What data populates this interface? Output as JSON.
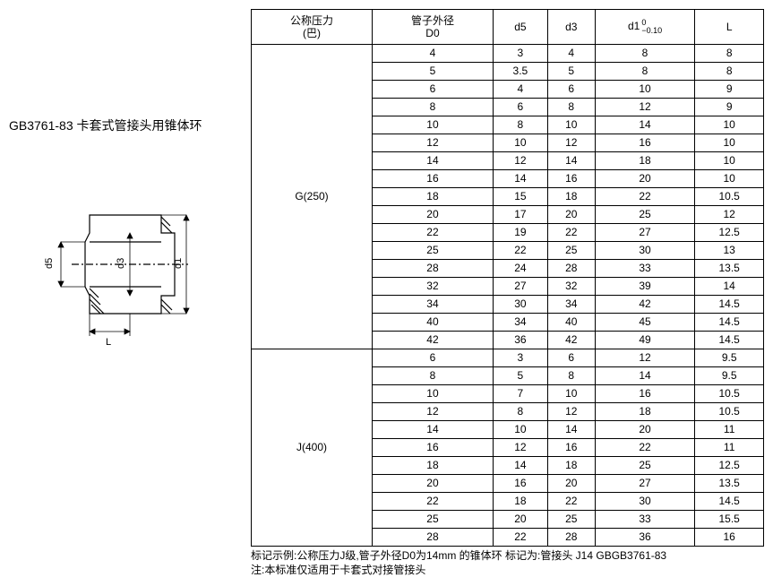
{
  "standard_label": "GB3761-83  卡套式管接头用锥体环",
  "diagram": {
    "labels": {
      "d5": "d5",
      "d3": "d3",
      "d1": "d1",
      "L": "L"
    }
  },
  "table": {
    "headers": {
      "col1": "公称压力\n(巴)",
      "col2": "管子外径\nD0",
      "col3": "d5",
      "col4": "d3",
      "col5_line1": "d1",
      "col5_line2_top": "0",
      "col5_line2_bot": "−0.10",
      "col6": "L"
    },
    "groups": [
      {
        "label": "G(250)",
        "rows": [
          [
            "4",
            "3",
            "4",
            "8",
            "8"
          ],
          [
            "5",
            "3.5",
            "5",
            "8",
            "8"
          ],
          [
            "6",
            "4",
            "6",
            "10",
            "9"
          ],
          [
            "8",
            "6",
            "8",
            "12",
            "9"
          ],
          [
            "10",
            "8",
            "10",
            "14",
            "10"
          ],
          [
            "12",
            "10",
            "12",
            "16",
            "10"
          ],
          [
            "14",
            "12",
            "14",
            "18",
            "10"
          ],
          [
            "16",
            "14",
            "16",
            "20",
            "10"
          ],
          [
            "18",
            "15",
            "18",
            "22",
            "10.5"
          ],
          [
            "20",
            "17",
            "20",
            "25",
            "12"
          ],
          [
            "22",
            "19",
            "22",
            "27",
            "12.5"
          ],
          [
            "25",
            "22",
            "25",
            "30",
            "13"
          ],
          [
            "28",
            "24",
            "28",
            "33",
            "13.5"
          ],
          [
            "32",
            "27",
            "32",
            "39",
            "14"
          ],
          [
            "34",
            "30",
            "34",
            "42",
            "14.5"
          ],
          [
            "40",
            "34",
            "40",
            "45",
            "14.5"
          ],
          [
            "42",
            "36",
            "42",
            "49",
            "14.5"
          ]
        ]
      },
      {
        "label": "J(400)",
        "rows": [
          [
            "6",
            "3",
            "6",
            "12",
            "9.5"
          ],
          [
            "8",
            "5",
            "8",
            "14",
            "9.5"
          ],
          [
            "10",
            "7",
            "10",
            "16",
            "10.5"
          ],
          [
            "12",
            "8",
            "12",
            "18",
            "10.5"
          ],
          [
            "14",
            "10",
            "14",
            "20",
            "11"
          ],
          [
            "16",
            "12",
            "16",
            "22",
            "11"
          ],
          [
            "18",
            "14",
            "18",
            "25",
            "12.5"
          ],
          [
            "20",
            "16",
            "20",
            "27",
            "13.5"
          ],
          [
            "22",
            "18",
            "22",
            "30",
            "14.5"
          ],
          [
            "25",
            "20",
            "25",
            "33",
            "15.5"
          ],
          [
            "28",
            "22",
            "28",
            "36",
            "16"
          ]
        ]
      }
    ]
  },
  "footnote_line1": "标记示例:公称压力J级,管子外径D0为14mm 的锥体环  标记为:管接头 J14 GBGB3761-83",
  "footnote_line2": "注:本标准仅适用于卡套式对接管接头"
}
